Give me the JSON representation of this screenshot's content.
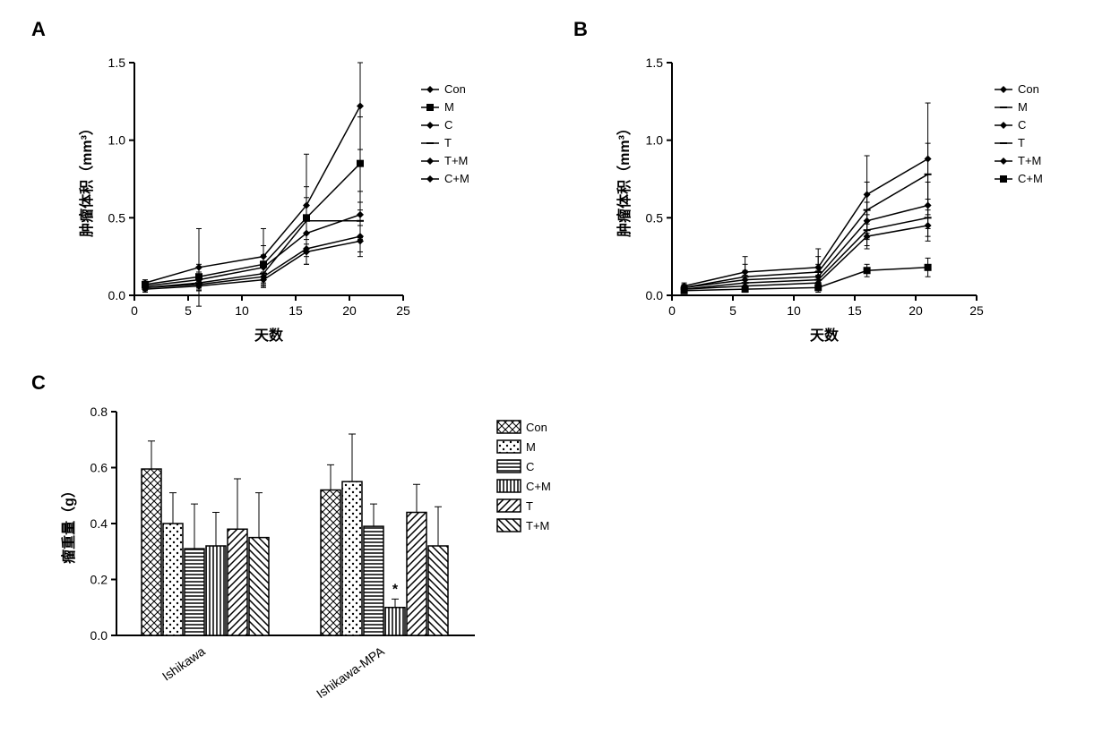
{
  "panelA": {
    "label": "A",
    "type": "line",
    "xlabel": "天数",
    "ylabel": "肿瘤体积（mm³）",
    "xlim": [
      0,
      25
    ],
    "ylim": [
      0,
      1.5
    ],
    "xticks": [
      0,
      5,
      10,
      15,
      20,
      25
    ],
    "yticks": [
      0,
      0.5,
      1.0,
      1.5
    ],
    "x": [
      1,
      6,
      12,
      16,
      21
    ],
    "series": [
      {
        "name": "Con",
        "marker": "diamond",
        "y": [
          0.08,
          0.18,
          0.25,
          0.58,
          1.22
        ],
        "err": [
          0.02,
          0.25,
          0.18,
          0.33,
          0.28
        ]
      },
      {
        "name": "M",
        "marker": "square",
        "y": [
          0.07,
          0.12,
          0.2,
          0.5,
          0.85
        ],
        "err": [
          0.02,
          0.08,
          0.12,
          0.2,
          0.3
        ]
      },
      {
        "name": "C",
        "marker": "diamond",
        "y": [
          0.06,
          0.1,
          0.18,
          0.4,
          0.52
        ],
        "err": [
          0.02,
          0.05,
          0.08,
          0.1,
          0.15
        ]
      },
      {
        "name": "T",
        "marker": "hline",
        "y": [
          0.05,
          0.08,
          0.14,
          0.48,
          0.48
        ],
        "err": [
          0.02,
          0.05,
          0.08,
          0.15,
          0.12
        ]
      },
      {
        "name": "T+M",
        "marker": "diamond",
        "y": [
          0.05,
          0.07,
          0.12,
          0.3,
          0.38
        ],
        "err": [
          0.02,
          0.04,
          0.06,
          0.1,
          0.1
        ]
      },
      {
        "name": "C+M",
        "marker": "diamond",
        "y": [
          0.04,
          0.06,
          0.1,
          0.28,
          0.35
        ],
        "err": [
          0.02,
          0.03,
          0.05,
          0.08,
          0.1
        ]
      }
    ]
  },
  "panelB": {
    "label": "B",
    "type": "line",
    "xlabel": "天数",
    "ylabel": "肿瘤体积（mm³）",
    "xlim": [
      0,
      25
    ],
    "ylim": [
      0,
      1.5
    ],
    "xticks": [
      0,
      5,
      10,
      15,
      20,
      25
    ],
    "yticks": [
      0,
      0.5,
      1.0,
      1.5
    ],
    "x": [
      1,
      6,
      12,
      16,
      21
    ],
    "series": [
      {
        "name": "Con",
        "marker": "diamond",
        "y": [
          0.06,
          0.15,
          0.18,
          0.65,
          0.88
        ],
        "err": [
          0.02,
          0.1,
          0.12,
          0.25,
          0.36
        ]
      },
      {
        "name": "M",
        "marker": "hline",
        "y": [
          0.05,
          0.12,
          0.15,
          0.55,
          0.78
        ],
        "err": [
          0.02,
          0.08,
          0.1,
          0.18,
          0.2
        ]
      },
      {
        "name": "C",
        "marker": "diamond",
        "y": [
          0.05,
          0.1,
          0.12,
          0.48,
          0.58
        ],
        "err": [
          0.02,
          0.06,
          0.08,
          0.12,
          0.15
        ]
      },
      {
        "name": "T",
        "marker": "hline",
        "y": [
          0.04,
          0.08,
          0.1,
          0.42,
          0.5
        ],
        "err": [
          0.02,
          0.05,
          0.06,
          0.1,
          0.12
        ]
      },
      {
        "name": "T+M",
        "marker": "diamond",
        "y": [
          0.04,
          0.06,
          0.08,
          0.38,
          0.45
        ],
        "err": [
          0.02,
          0.04,
          0.05,
          0.08,
          0.1
        ]
      },
      {
        "name": "C+M",
        "marker": "square",
        "y": [
          0.03,
          0.04,
          0.05,
          0.16,
          0.18
        ],
        "err": [
          0.01,
          0.02,
          0.03,
          0.04,
          0.06
        ]
      }
    ]
  },
  "panelC": {
    "label": "C",
    "type": "bar",
    "ylabel": "瘤重量（g）",
    "ylim": [
      0,
      0.8
    ],
    "yticks": [
      0.0,
      0.2,
      0.4,
      0.6,
      0.8
    ],
    "groups": [
      "Ishikawa",
      "Ishikawa-MPA"
    ],
    "series": [
      {
        "name": "Con",
        "pattern": "crosshatch",
        "y": [
          0.595,
          0.52
        ],
        "err": [
          0.1,
          0.09
        ]
      },
      {
        "name": "M",
        "pattern": "dots",
        "y": [
          0.4,
          0.55
        ],
        "err": [
          0.11,
          0.17
        ]
      },
      {
        "name": "C",
        "pattern": "hstripes",
        "y": [
          0.31,
          0.39
        ],
        "err": [
          0.16,
          0.08
        ]
      },
      {
        "name": "C+M",
        "pattern": "vstripes",
        "y": [
          0.32,
          0.1
        ],
        "err": [
          0.12,
          0.03
        ],
        "sig": [
          null,
          "*"
        ]
      },
      {
        "name": "T",
        "pattern": "diag",
        "y": [
          0.38,
          0.44
        ],
        "err": [
          0.18,
          0.1
        ]
      },
      {
        "name": "T+M",
        "pattern": "diag2",
        "y": [
          0.35,
          0.32
        ],
        "err": [
          0.16,
          0.14
        ]
      }
    ],
    "bar_width": 0.12,
    "bar_colors": "#ffffff",
    "stroke": "#000000"
  },
  "colors": {
    "line": "#000000",
    "background": "#ffffff"
  }
}
